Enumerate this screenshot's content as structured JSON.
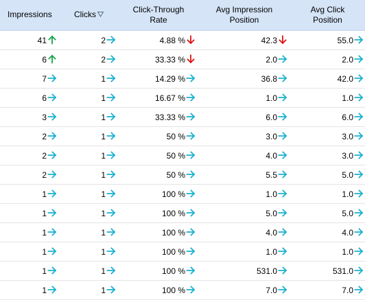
{
  "colors": {
    "header_bg": "#d5e4f7",
    "up": "#17a34a",
    "down": "#e01010",
    "same": "#1ab0d0"
  },
  "icons": {
    "up": "arrow-up-icon",
    "down": "arrow-down-icon",
    "same": "arrow-right-icon",
    "sort": "sort-desc-icon"
  },
  "table": {
    "sorted_column": "Clicks",
    "sort_direction": "descending",
    "headers": [
      [
        "Impressions"
      ],
      [
        "Clicks"
      ],
      [
        "Click-Through",
        "Rate"
      ],
      [
        "Avg Impression",
        "Position"
      ],
      [
        "Avg Click",
        "Position"
      ]
    ],
    "rows": [
      [
        [
          "41",
          "up"
        ],
        [
          "2",
          "same"
        ],
        [
          "4.88 %",
          "down"
        ],
        [
          "42.3",
          "down"
        ],
        [
          "55.0",
          "same"
        ]
      ],
      [
        [
          "6",
          "up"
        ],
        [
          "2",
          "same"
        ],
        [
          "33.33 %",
          "down"
        ],
        [
          "2.0",
          "same"
        ],
        [
          "2.0",
          "same"
        ]
      ],
      [
        [
          "7",
          "same"
        ],
        [
          "1",
          "same"
        ],
        [
          "14.29 %",
          "same"
        ],
        [
          "36.8",
          "same"
        ],
        [
          "42.0",
          "same"
        ]
      ],
      [
        [
          "6",
          "same"
        ],
        [
          "1",
          "same"
        ],
        [
          "16.67 %",
          "same"
        ],
        [
          "1.0",
          "same"
        ],
        [
          "1.0",
          "same"
        ]
      ],
      [
        [
          "3",
          "same"
        ],
        [
          "1",
          "same"
        ],
        [
          "33.33 %",
          "same"
        ],
        [
          "6.0",
          "same"
        ],
        [
          "6.0",
          "same"
        ]
      ],
      [
        [
          "2",
          "same"
        ],
        [
          "1",
          "same"
        ],
        [
          "50 %",
          "same"
        ],
        [
          "3.0",
          "same"
        ],
        [
          "3.0",
          "same"
        ]
      ],
      [
        [
          "2",
          "same"
        ],
        [
          "1",
          "same"
        ],
        [
          "50 %",
          "same"
        ],
        [
          "4.0",
          "same"
        ],
        [
          "3.0",
          "same"
        ]
      ],
      [
        [
          "2",
          "same"
        ],
        [
          "1",
          "same"
        ],
        [
          "50 %",
          "same"
        ],
        [
          "5.5",
          "same"
        ],
        [
          "5.0",
          "same"
        ]
      ],
      [
        [
          "1",
          "same"
        ],
        [
          "1",
          "same"
        ],
        [
          "100 %",
          "same"
        ],
        [
          "1.0",
          "same"
        ],
        [
          "1.0",
          "same"
        ]
      ],
      [
        [
          "1",
          "same"
        ],
        [
          "1",
          "same"
        ],
        [
          "100 %",
          "same"
        ],
        [
          "5.0",
          "same"
        ],
        [
          "5.0",
          "same"
        ]
      ],
      [
        [
          "1",
          "same"
        ],
        [
          "1",
          "same"
        ],
        [
          "100 %",
          "same"
        ],
        [
          "4.0",
          "same"
        ],
        [
          "4.0",
          "same"
        ]
      ],
      [
        [
          "1",
          "same"
        ],
        [
          "1",
          "same"
        ],
        [
          "100 %",
          "same"
        ],
        [
          "1.0",
          "same"
        ],
        [
          "1.0",
          "same"
        ]
      ],
      [
        [
          "1",
          "same"
        ],
        [
          "1",
          "same"
        ],
        [
          "100 %",
          "same"
        ],
        [
          "531.0",
          "same"
        ],
        [
          "531.0",
          "same"
        ]
      ],
      [
        [
          "1",
          "same"
        ],
        [
          "1",
          "same"
        ],
        [
          "100 %",
          "same"
        ],
        [
          "7.0",
          "same"
        ],
        [
          "7.0",
          "same"
        ]
      ]
    ]
  }
}
